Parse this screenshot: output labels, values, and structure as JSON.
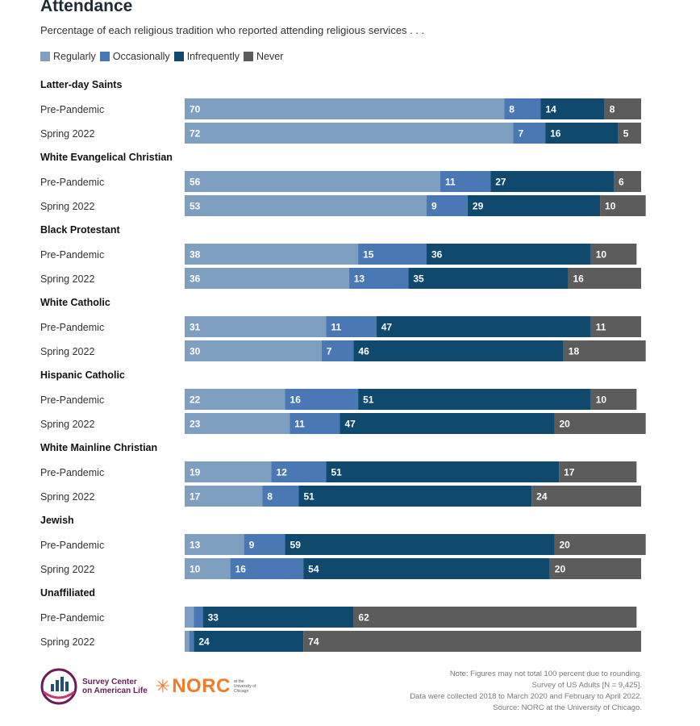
{
  "colors": {
    "regularly": "#7f9fc0",
    "occasionally": "#4a78b5",
    "infrequently": "#0f4a6e",
    "never": "#5c5c5c"
  },
  "chart_data": {
    "type": "bar",
    "orientation": "horizontal-stacked",
    "title": "Attendance",
    "subtitle": "Percentage of each religious tradition who reported attending religious services . . .",
    "legend": [
      "Regularly",
      "Occasionally",
      "Infrequently",
      "Never"
    ],
    "legend_position": "top-left",
    "groups": [
      {
        "name": "Latter-day Saints",
        "rows": [
          {
            "label": "Pre-Pandemic",
            "values": [
              70,
              8,
              14,
              8
            ]
          },
          {
            "label": "Spring 2022",
            "values": [
              72,
              7,
              16,
              5
            ]
          }
        ]
      },
      {
        "name": "White Evangelical Christian",
        "rows": [
          {
            "label": "Pre-Pandemic",
            "values": [
              56,
              11,
              27,
              6
            ]
          },
          {
            "label": "Spring 2022",
            "values": [
              53,
              9,
              29,
              10
            ]
          }
        ]
      },
      {
        "name": "Black Protestant",
        "rows": [
          {
            "label": "Pre-Pandemic",
            "values": [
              38,
              15,
              36,
              10
            ]
          },
          {
            "label": "Spring 2022",
            "values": [
              36,
              13,
              35,
              16
            ]
          }
        ]
      },
      {
        "name": "White Catholic",
        "rows": [
          {
            "label": "Pre-Pandemic",
            "values": [
              31,
              11,
              47,
              11
            ]
          },
          {
            "label": "Spring 2022",
            "values": [
              30,
              7,
              46,
              18
            ]
          }
        ]
      },
      {
        "name": "Hispanic Catholic",
        "rows": [
          {
            "label": "Pre-Pandemic",
            "values": [
              22,
              16,
              51,
              10
            ]
          },
          {
            "label": "Spring 2022",
            "values": [
              23,
              11,
              47,
              20
            ]
          }
        ]
      },
      {
        "name": "White Mainline Christian",
        "rows": [
          {
            "label": "Pre-Pandemic",
            "values": [
              19,
              12,
              51,
              17
            ]
          },
          {
            "label": "Spring 2022",
            "values": [
              17,
              8,
              51,
              24
            ]
          }
        ]
      },
      {
        "name": "Jewish",
        "rows": [
          {
            "label": "Pre-Pandemic",
            "values": [
              13,
              9,
              59,
              20
            ]
          },
          {
            "label": "Spring 2022",
            "values": [
              10,
              16,
              54,
              20
            ]
          }
        ]
      },
      {
        "name": "Unaffiliated",
        "rows": [
          {
            "label": "Pre-Pandemic",
            "values": [
              2,
              2,
              33,
              62
            ],
            "show_labels": [
              false,
              false,
              true,
              true
            ]
          },
          {
            "label": "Spring 2022",
            "values": [
              1,
              1,
              24,
              74
            ],
            "show_labels": [
              false,
              false,
              true,
              true
            ]
          }
        ]
      }
    ],
    "xlim": [
      0,
      100
    ]
  },
  "footer": {
    "logo_survey_center_line1": "Survey Center",
    "logo_survey_center_line2": "on American Life",
    "logo_norc": "NORC",
    "logo_norc_sub": "at the University of Chicago",
    "notes": [
      "Note: Figures may not total 100 percent due to rounding.",
      "Survey of US Adults [N = 9,425].",
      "Data were collected 2018 to March 2020 and February to April 2022.",
      "Source: NORC at the University of Chicago."
    ]
  }
}
